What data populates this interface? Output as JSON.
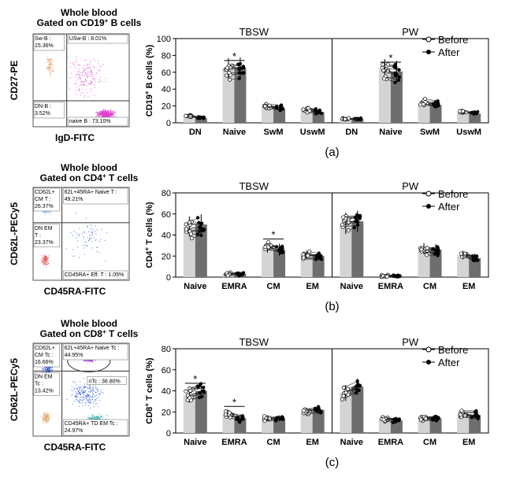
{
  "colors": {
    "before_bar": "#d4d4d4",
    "after_bar": "#6e6e6e",
    "axis": "#000000",
    "flow_pink": "#e040d0",
    "flow_blue": "#2050e0",
    "flow_light_blue": "#6ab0e0",
    "flow_green": "#30a040",
    "flow_red": "#e05050",
    "flow_orange": "#e0a060",
    "flow_purple": "#a050e0",
    "flow_teal": "#40b0a0"
  },
  "legend": {
    "before": "Before",
    "after": "After"
  },
  "chart_data": [
    {
      "type": "bar",
      "panel": "(a)",
      "ylabel_main": "CD19",
      "ylabel_sup": "+",
      "ylabel_rest": " B cells (%)",
      "ylim": [
        0,
        100
      ],
      "yticks": [
        "0",
        "20",
        "40",
        "60",
        "80",
        "100"
      ],
      "tick_values": [
        0,
        20,
        40,
        60,
        80,
        100
      ],
      "groups": [
        {
          "label": "TBSW",
          "categories": [
            "DN",
            "Naive",
            "SwM",
            "UswM"
          ],
          "before": [
            8,
            64,
            19,
            15
          ],
          "after": [
            6,
            65,
            17,
            13
          ],
          "significant": [
            false,
            true,
            false,
            false
          ]
        },
        {
          "label": "PW",
          "categories": [
            "DN",
            "Naive",
            "SwM",
            "UswM"
          ],
          "before": [
            5,
            63,
            23,
            12
          ],
          "after": [
            5,
            61,
            21,
            11
          ],
          "significant": [
            false,
            true,
            false,
            false
          ]
        }
      ]
    },
    {
      "type": "bar",
      "panel": "(b)",
      "ylabel_main": "CD4",
      "ylabel_sup": "+",
      "ylabel_rest": " T cells (%)",
      "ylim": [
        0,
        80
      ],
      "yticks": [
        "0",
        "20",
        "40",
        "60",
        "80"
      ],
      "tick_values": [
        0,
        20,
        40,
        60,
        80
      ],
      "groups": [
        {
          "label": "TBSW",
          "categories": [
            "Naive",
            "EMRA",
            "CM",
            "EM"
          ],
          "before": [
            48,
            3,
            29,
            21
          ],
          "after": [
            50,
            3,
            26,
            20
          ],
          "significant": [
            false,
            false,
            true,
            false
          ]
        },
        {
          "label": "PW",
          "categories": [
            "Naive",
            "EMRA",
            "CM",
            "EM"
          ],
          "before": [
            51,
            1,
            27,
            21
          ],
          "after": [
            53,
            1,
            26,
            18
          ],
          "significant": [
            false,
            false,
            false,
            false
          ]
        }
      ]
    },
    {
      "type": "bar",
      "panel": "(c)",
      "ylabel_main": "CD8",
      "ylabel_sup": "+",
      "ylabel_rest": " T cells (%)",
      "ylim": [
        0,
        80
      ],
      "yticks": [
        "0",
        "20",
        "40",
        "60",
        "80"
      ],
      "tick_values": [
        0,
        20,
        40,
        60,
        80
      ],
      "groups": [
        {
          "label": "TBSW",
          "categories": [
            "Naive",
            "EMRA",
            "CM",
            "EM"
          ],
          "before": [
            36,
            18,
            14,
            20
          ],
          "after": [
            40,
            14,
            14,
            22
          ],
          "significant": [
            true,
            true,
            false,
            false
          ]
        },
        {
          "label": "PW",
          "categories": [
            "Naive",
            "EMRA",
            "CM",
            "EM"
          ],
          "before": [
            38,
            13,
            14,
            18
          ],
          "after": [
            44,
            12,
            14,
            17
          ],
          "significant": [
            false,
            false,
            false,
            false
          ]
        }
      ]
    }
  ],
  "flow_plots": [
    {
      "title_line1": "Whole blood",
      "title_line2_pre": "Gated on CD19",
      "title_line2_sup": "+",
      "title_line2_post": " B cells",
      "ylabel": "CD27-PE",
      "xlabel": "IgD-FITC",
      "gates": {
        "top_left": "Sw-B :\n15.36%",
        "top_right": "USw-B : 8.01%",
        "bottom_left": "DN-B :\n3.52%",
        "bottom_right": "naive B : 73.10%"
      }
    },
    {
      "title_line1": "Whole blood",
      "title_line2_pre": "Gated on CD4",
      "title_line2_sup": "+",
      "title_line2_post": " T cells",
      "ylabel": "CD62L-PECy5",
      "xlabel": "CD45RA-FITC",
      "gates": {
        "top_left": "CD62L+\nCM T :\n26.37%",
        "top_right": "62L+45RA+ Naive T :\n49.21%",
        "bottom_left": "DN EM\nT :\n23.37%",
        "bottom_right": "CD45RA+ Eff. T : 1.05%"
      }
    },
    {
      "title_line1": "Whole blood",
      "title_line2_pre": "Gated on CD8",
      "title_line2_sup": "+",
      "title_line2_post": " T cells",
      "ylabel": "CD62L-PECy5",
      "xlabel": "CD45RA-FITC",
      "gates": {
        "top_left": "CD62L+\nCM Tc :\n16.66%",
        "top_right": "62L+45RA+ Naive Tc :\n44.95%",
        "bottom_left": "DN EM\nTc :\n13.42%",
        "bottom_right": "CD45RA+ TD EM Tc :\n24.97%",
        "extra": "nTc : 36.80%"
      }
    }
  ]
}
